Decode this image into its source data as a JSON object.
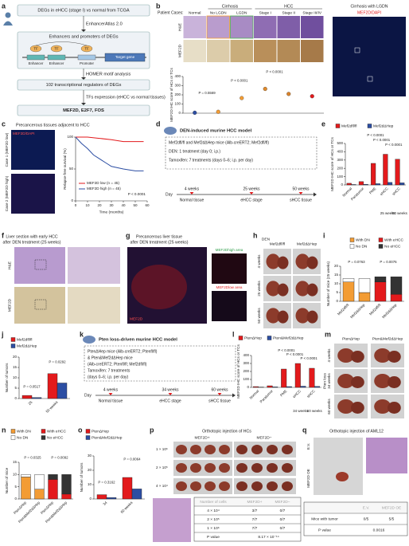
{
  "panels": {
    "a": {
      "letter": "a",
      "steps": [
        "DEGs in eHCC (stage I) vs normal from TCGA",
        "EnhancerAtlas 2.0",
        "Enhancers and promoters of DEGs",
        "HOMER motif analysis",
        "102 transcriptional regulators of DEGs",
        "TFs expression (eHCC vs normal tissues)",
        "MEF2D, E2F7, FOS"
      ],
      "diagram": [
        "TF",
        "TF",
        "TF",
        "Enhancer",
        "Enhancer",
        "Promoter",
        "Target gene"
      ]
    },
    "b": {
      "letter": "b",
      "row_header": "Patient Cases:",
      "groups": [
        "Cirrhosis",
        "HCC"
      ],
      "columns": [
        "Normal",
        "No LGDN",
        "LGDN",
        "Stage I",
        "Stage II",
        "Stage III/IV"
      ],
      "rows": [
        "H&E",
        "MEF2D"
      ],
      "side_title": "Cirrhosis with LGDN",
      "side_stain": "MEF2D/DAPI",
      "chart": {
        "type": "dot",
        "ylabel": "MEF2D IHC score of HCs or TCs",
        "ylim": [
          0,
          400
        ],
        "yticks": [
          0,
          100,
          200,
          300,
          400
        ],
        "values": [
          5,
          15,
          165,
          265,
          210,
          185
        ],
        "colors": [
          "#2c4ea3",
          "#f39c34",
          "#f39c34",
          "#e08a2c",
          "#d9822b",
          "#e31a1c"
        ],
        "annotations": [
          "P < 0.0001",
          "P = 0.5569",
          "P < 0.0001"
        ]
      }
    },
    "c": {
      "letter": "c",
      "title": "Precancerous tissues adjacent to HCC",
      "stain": "MEF2D/DAPI",
      "cases": [
        "Case 1 (MEF2D low)",
        "Case 2 (MEF2D high)"
      ],
      "chart": {
        "type": "line",
        "ylabel": "Relapse-free survival (%)",
        "xlabel": "Time (months)",
        "xlim": [
          0,
          60
        ],
        "xticks": [
          0,
          10,
          20,
          30,
          40,
          50,
          60
        ],
        "ylim": [
          0,
          100
        ],
        "yticks": [
          0,
          50,
          100
        ],
        "series": [
          {
            "name": "MEF2D low (n = 45)",
            "color": "#e31a1c",
            "x": [
              0,
              10,
              20,
              30,
              40,
              50,
              57
            ],
            "values": [
              100,
              100,
              98,
              96,
              93,
              93,
              93
            ]
          },
          {
            "name": "MEF2D high (n = 45)",
            "color": "#2c4ea3",
            "x": [
              0,
              5,
              10,
              15,
              20,
              25,
              30,
              40,
              50,
              57
            ],
            "values": [
              100,
              90,
              82,
              72,
              66,
              60,
              54,
              50,
              47,
              47
            ]
          }
        ],
        "annotations": [
          "P < 0.0001"
        ]
      }
    },
    "d": {
      "letter": "d",
      "title": "DEN-induced murine HCC model",
      "lines": [
        "Mef2dfl/fl and Mef2dΔHep mice (Alb-creERT2; Mef2dfl/fl)",
        "DEN: 1 treatment (day 0; i.p.)",
        "Tamoxifen: 7 treatments (days 0–6; i.p. per day)"
      ],
      "timeline": {
        "day": "Day",
        "times": [
          "4 weeks",
          "25 weeks",
          "50 weeks"
        ],
        "stages": [
          "Normal tissue",
          "eHCC stage",
          "sHCC tissue"
        ]
      }
    },
    "e": {
      "letter": "e",
      "chart": {
        "type": "bar",
        "ylabel": "MEF2D IHC score of HCs or TCs",
        "ylim": [
          0,
          500
        ],
        "yticks": [
          0,
          100,
          200,
          300,
          400,
          500
        ],
        "categories": [
          "Normal",
          "Paratumor",
          "PME",
          "eHCC",
          "sHCC"
        ],
        "group_labels": [
          "25 weeks",
          "50 weeks"
        ],
        "series": [
          {
            "name": "Mef2dfl/fl",
            "color": "#e31a1c",
            "values": [
              20,
              40,
              260,
              370,
              310
            ]
          },
          {
            "name": "Mef2dΔHep",
            "color": "#2c4ea3",
            "values": [
              5,
              8,
              15,
              30,
              25
            ]
          }
        ],
        "annotations": [
          "P < 0.0001",
          "P < 0.0001",
          "P < 0.0001"
        ]
      }
    },
    "f": {
      "letter": "f",
      "title": [
        "Liver section with early HCC",
        "after DEN treatment (25 weeks)"
      ],
      "rows": [
        "H&E",
        "MEF2D"
      ]
    },
    "g": {
      "letter": "g",
      "title": [
        "Precancerous liver tissue",
        "after DEN treatment (25 weeks)"
      ],
      "stain": "MEF2D",
      "insets": [
        "MEF2Dhigh area",
        "MEF2Dlow area"
      ]
    },
    "h": {
      "letter": "h",
      "model": "DEN",
      "columns": [
        "Mef2dfl/fl",
        "Mef2dΔHep"
      ],
      "rows": [
        "4 weeks",
        "25 weeks",
        "50 weeks"
      ]
    },
    "i": {
      "letter": "i",
      "chart": {
        "type": "stacked",
        "ylabel": "Number of mice (25 weeks)",
        "ylim": [
          0,
          20
        ],
        "yticks": [
          0,
          5,
          10,
          15,
          20
        ],
        "categories": [
          "Mef2dfl/fl",
          "Mef2dΔHep",
          "Mef2dfl/fl",
          "Mef2dΔHep"
        ],
        "series": [
          {
            "name": "With DN",
            "color": "#f39c34",
            "values": [
              11,
              5,
              0,
              0
            ]
          },
          {
            "name": "No DN",
            "color": "#ffffff",
            "values": [
              2,
              8,
              0,
              0
            ]
          },
          {
            "name": "With eHCC",
            "color": "#e31a1c",
            "values": [
              0,
              0,
              11,
              4
            ]
          },
          {
            "name": "No eHCC",
            "color": "#333333",
            "values": [
              0,
              0,
              3,
              10
            ]
          }
        ],
        "annotations": [
          "P = 0.0763",
          "P = 0.0076"
        ]
      }
    },
    "j": {
      "letter": "j",
      "chart": {
        "type": "bar",
        "ylabel": "Number of tumors",
        "ylim": [
          0,
          20
        ],
        "yticks": [
          0,
          5,
          10,
          15,
          20
        ],
        "categories": [
          "25",
          "50 weeks"
        ],
        "series": [
          {
            "name": "Mef2dfl/fl",
            "color": "#e31a1c",
            "values": [
              1.5,
              12
            ]
          },
          {
            "name": "Mef2dΔHep",
            "color": "#2c4ea3",
            "values": [
              0.5,
              7.5
            ]
          }
        ],
        "annotations": [
          "P = 0.0517",
          "P = 0.0292"
        ]
      }
    },
    "k": {
      "letter": "k",
      "title": "Pten loss-driven murine HCC model",
      "lines": [
        "PtenΔHep mice (Alb-creERT2; Ptenfl/fl)",
        "& Pten&Mef2dΔHep mice",
        "(Alb-creERT2; Ptenfl/fl; Mef2dfl/fl)",
        "Tamoxifen: 7 treatments",
        "(days 0–6; i.p. per day)"
      ],
      "timeline": {
        "day": "Day",
        "times": [
          "4 weeks",
          "34 weeks",
          "60 weeks"
        ],
        "stages": [
          "Normal tissue",
          "eHCC stage",
          "sHCC tissue"
        ]
      }
    },
    "l": {
      "letter": "l",
      "chart": {
        "type": "bar",
        "ylabel": "MEF2D IHC score of HCs or TCs",
        "ylim": [
          0,
          400
        ],
        "yticks": [
          0,
          100,
          200,
          300,
          400
        ],
        "categories": [
          "Normal",
          "Paratumor",
          "PME",
          "eHCC",
          "sHCC"
        ],
        "group_labels": [
          "34 weeks",
          "60 weeks"
        ],
        "series": [
          {
            "name": "PtenΔHep",
            "color": "#e31a1c",
            "values": [
              10,
              20,
              230,
              300,
              240
            ]
          },
          {
            "name": "Pten&Mef2dΔHep",
            "color": "#2c4ea3",
            "values": [
              4,
              6,
              10,
              15,
              12
            ]
          }
        ],
        "annotations": [
          "P < 0.0001",
          "P < 0.0001",
          "P < 0.0001"
        ]
      }
    },
    "m": {
      "letter": "m",
      "columns": [
        "PtenΔHep",
        "Pten&Mef2dΔHep"
      ],
      "rows": [
        "4 weeks",
        "34 weeks",
        "60 weeks"
      ],
      "model": "Pten loss"
    },
    "n": {
      "letter": "n",
      "chart": {
        "type": "stacked",
        "ylabel": "Number of mice",
        "ylim": [
          0,
          15
        ],
        "yticks": [
          0,
          5,
          10,
          15
        ],
        "categories": [
          "PtenΔHep",
          "Pten&Mef2dΔHep",
          "PtenΔHep",
          "Pten&Mef2dΔHep"
        ],
        "series": [
          {
            "name": "With DN",
            "color": "#f39c34",
            "values": [
              9,
              4,
              0,
              0
            ]
          },
          {
            "name": "No DN",
            "color": "#ffffff",
            "values": [
              1,
              6,
              0,
              0
            ]
          },
          {
            "name": "With eHCC",
            "color": "#e31a1c",
            "values": [
              0,
              0,
              8,
              2
            ]
          },
          {
            "name": "No eHCC",
            "color": "#333333",
            "values": [
              0,
              0,
              2,
              8
            ]
          }
        ],
        "annotations": [
          "P = 0.0325",
          "P = 0.0092"
        ]
      }
    },
    "o": {
      "letter": "o",
      "chart": {
        "type": "bar",
        "ylabel": "Number of tumors",
        "ylim": [
          0,
          30
        ],
        "yticks": [
          0,
          10,
          20,
          30
        ],
        "categories": [
          "34",
          "60 weeks"
        ],
        "series": [
          {
            "name": "PtenΔHep",
            "color": "#e31a1c",
            "values": [
              3,
              15
            ]
          },
          {
            "name": "Pten&Mef2dΔHep",
            "color": "#2c4ea3",
            "values": [
              1,
              7
            ]
          }
        ],
        "annotations": [
          "P = 0.3162",
          "P = 0.0064"
        ]
      }
    },
    "p": {
      "letter": "p",
      "title": "Orthotopic injection of HCs",
      "columns": [
        "MEF2D+",
        "MEF2D−"
      ],
      "rows": [
        "1 × 10⁶",
        "2 × 10⁵",
        "4 × 10⁴"
      ],
      "table": {
        "header": [
          "Number of cells",
          "MEF2D+",
          "MEF2D−"
        ],
        "rows": [
          [
            "4 × 10⁴",
            "3/7",
            "0/7"
          ],
          [
            "2 × 10⁵",
            "7/7",
            "0/7"
          ],
          [
            "1 × 10⁶",
            "7/7",
            "0/7"
          ],
          [
            "P value",
            "8.17 × 10⁻¹⁴"
          ]
        ]
      }
    },
    "q": {
      "letter": "q",
      "title": "Orthotopic injection of AML12",
      "table": {
        "header": [
          "E.V.",
          "MEF2D OE"
        ],
        "rows": [
          [
            "Mice with tumor",
            "0/5",
            "5/5"
          ],
          [
            "P value",
            "0.0016"
          ]
        ]
      }
    }
  }
}
